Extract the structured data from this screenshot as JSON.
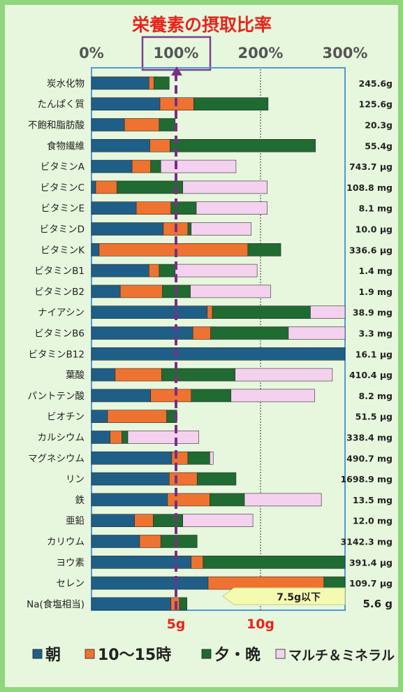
{
  "title": "栄養素の摂取比率",
  "colors": {
    "morning": "#1f5f87",
    "midday": "#ee7330",
    "evening": "#1f6b32",
    "supplement": "#f4d2ef",
    "highlight_box": "#7b3f8f",
    "dashed_line": "#7b2d86",
    "frame": "#4e9ad6",
    "title_red": "#e8241d",
    "callout": "#f4fbb0"
  },
  "chart_data": {
    "type": "bar",
    "stacked": true,
    "orientation": "horizontal",
    "xlim": [
      0,
      300
    ],
    "x_ticks": [
      "0%",
      "100%",
      "200%",
      "300%"
    ],
    "reference_line": 100,
    "categories": [
      "炭水化物",
      "たんぱく質",
      "不飽和脂肪酸",
      "食物繊維",
      "ビタミンA",
      "ビタミンC",
      "ビタミンE",
      "ビタミンD",
      "ビタミンK",
      "ビタミンB1",
      "ビタミンB2",
      "ナイアシン",
      "ビタミンB6",
      "ビタミンB12",
      "葉酸",
      "パントテン酸",
      "ビオチン",
      "カルシウム",
      "マグネシウム",
      "リン",
      "鉄",
      "亜鉛",
      "カリウム",
      "ヨウ素",
      "セレン",
      "Na(食塩相当)"
    ],
    "amounts": [
      "245.6g",
      "125.6g",
      "20.3g",
      "55.4g",
      "743.7 μg",
      "108.8 mg",
      "8.1 mg",
      "10.0 μg",
      "336.6 μg",
      "1.4 mg",
      "1.9 mg",
      "38.9 mg",
      "3.3 mg",
      "16.1 μg",
      "410.4 μg",
      "8.2 mg",
      "51.5 μg",
      "338.4 mg",
      "490.7 mg",
      "1698.9 mg",
      "13.5 mg",
      "12.0 mg",
      "3142.3 mg",
      "391.4 μg",
      "109.7 μg",
      "5.6 g"
    ],
    "series": [
      {
        "name": "朝",
        "values": [
          68,
          81,
          39,
          69,
          48,
          5,
          53,
          85,
          9,
          68,
          34,
          137,
          120,
          300,
          28,
          70,
          19,
          22,
          95,
          92,
          90,
          51,
          57,
          118,
          138,
          94
        ]
      },
      {
        "name": "10〜15時",
        "values": [
          6,
          40,
          41,
          24,
          22,
          25,
          41,
          29,
          176,
          12,
          50,
          6,
          21,
          0,
          55,
          48,
          70,
          14,
          19,
          33,
          50,
          22,
          25,
          14,
          137,
          10
        ]
      },
      {
        "name": "夕・晩",
        "values": [
          18,
          88,
          19,
          172,
          12,
          78,
          30,
          4,
          39,
          19,
          33,
          116,
          92,
          0,
          87,
          47,
          12,
          7,
          26,
          46,
          41,
          35,
          43,
          168,
          26,
          9
        ]
      },
      {
        "name": "マルチ＆ミネラル",
        "values": [
          0,
          0,
          0,
          0,
          89,
          100,
          84,
          71,
          0,
          97,
          95,
          44,
          71,
          0,
          115,
          99,
          0,
          84,
          4,
          0,
          91,
          83,
          0,
          0,
          0,
          0
        ]
      }
    ],
    "bottom_axis_labels": [
      "5g",
      "10g"
    ],
    "salt_note": "7.5g以下"
  },
  "legend": {
    "morning": "朝",
    "midday": "10〜15時",
    "evening": "夕・晩",
    "supplement": "マルチ＆ミネラル"
  }
}
